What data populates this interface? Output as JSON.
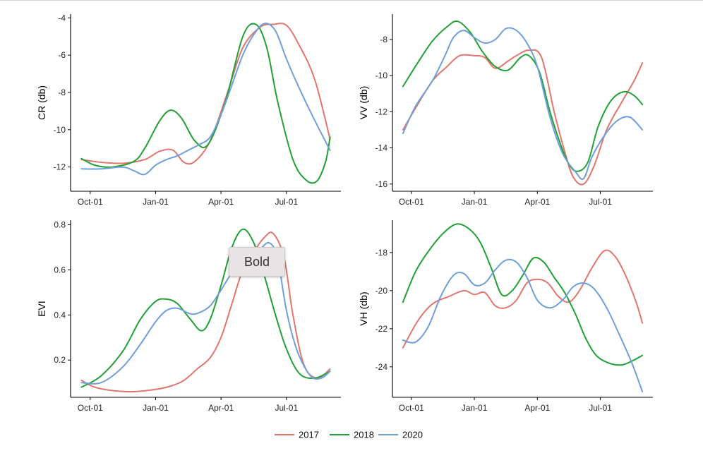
{
  "tooltip": {
    "text": "Bold"
  },
  "colors": {
    "2017": "#e0766d",
    "2018": "#21a035",
    "2020": "#6f9fdb"
  },
  "legend": [
    {
      "label": "2017",
      "color": "#e0766d"
    },
    {
      "label": "2018",
      "color": "#21a035"
    },
    {
      "label": "2020",
      "color": "#6f9fdb"
    }
  ],
  "chart_data": [
    {
      "type": "line",
      "ylabel": "CR (db)",
      "xticks": [
        1,
        4,
        7,
        10
      ],
      "xtick_labels": [
        "Oct-01",
        "Jan-01",
        "Apr-01",
        "Jul-01"
      ],
      "xlim": [
        0.1,
        12.5
      ],
      "ylim": [
        -13.3,
        -3.8
      ],
      "yticks": [
        -4,
        -6,
        -8,
        -10,
        -12
      ],
      "ytick_labels": [
        "-4",
        "-6",
        "-8",
        "-10",
        "-12"
      ],
      "grid": false,
      "series": [
        {
          "name": "2017",
          "x": [
            0.6,
            1.5,
            2.5,
            3.5,
            4.2,
            4.8,
            5.3,
            5.8,
            6.5,
            7.3,
            8.0,
            8.8,
            9.4,
            10.0,
            10.6,
            11.3,
            12.0
          ],
          "y": [
            -11.6,
            -11.75,
            -11.8,
            -11.6,
            -11.15,
            -11.1,
            -11.75,
            -11.7,
            -10.6,
            -8.0,
            -5.6,
            -4.5,
            -4.35,
            -4.4,
            -5.5,
            -7.3,
            -10.5
          ]
        },
        {
          "name": "2018",
          "x": [
            0.6,
            1.2,
            2.0,
            3.0,
            3.5,
            4.2,
            4.7,
            5.2,
            5.8,
            6.4,
            7.2,
            8.0,
            8.6,
            9.1,
            9.6,
            10.3,
            10.9,
            11.4,
            11.8,
            12.0
          ],
          "y": [
            -11.55,
            -11.9,
            -12.0,
            -11.7,
            -11.0,
            -9.5,
            -8.95,
            -9.4,
            -10.6,
            -10.8,
            -8.5,
            -5.0,
            -4.35,
            -5.6,
            -8.5,
            -11.6,
            -12.7,
            -12.75,
            -11.7,
            -10.4
          ]
        },
        {
          "name": "2020",
          "x": [
            0.6,
            1.5,
            2.5,
            3.0,
            3.5,
            4.0,
            4.5,
            5.0,
            5.5,
            6.0,
            6.5,
            7.0,
            7.5,
            8.0,
            8.5,
            9.0,
            9.5,
            10.0,
            10.6,
            11.3,
            12.0
          ],
          "y": [
            -12.1,
            -12.1,
            -12.0,
            -12.2,
            -12.4,
            -11.9,
            -11.6,
            -11.4,
            -11.1,
            -10.8,
            -10.4,
            -9.2,
            -7.6,
            -6.0,
            -4.9,
            -4.3,
            -4.7,
            -6.2,
            -7.8,
            -9.5,
            -11.1
          ]
        }
      ]
    },
    {
      "type": "line",
      "ylabel": "VV (db)",
      "xticks": [
        1,
        4,
        7,
        10
      ],
      "xtick_labels": [
        "Oct-01",
        "Jan-01",
        "Apr-01",
        "Jul-01"
      ],
      "xlim": [
        0.1,
        12.5
      ],
      "ylim": [
        -16.4,
        -6.6
      ],
      "yticks": [
        -8,
        -10,
        -12,
        -14,
        -16
      ],
      "ytick_labels": [
        "-8",
        "-10",
        "-12",
        "-14",
        "-16"
      ],
      "grid": false,
      "series": [
        {
          "name": "2017",
          "x": [
            0.6,
            1.2,
            2.0,
            2.7,
            3.3,
            4.0,
            4.5,
            5.0,
            5.6,
            6.0,
            6.6,
            7.2,
            7.8,
            8.3,
            8.7,
            9.2,
            9.7,
            10.3,
            11.0,
            11.6,
            12.0
          ],
          "y": [
            -13.0,
            -11.8,
            -10.3,
            -9.5,
            -8.9,
            -8.9,
            -9.0,
            -9.6,
            -9.2,
            -8.9,
            -8.6,
            -9.0,
            -12.0,
            -14.2,
            -15.6,
            -16.0,
            -15.0,
            -13.0,
            -11.5,
            -10.3,
            -9.3
          ]
        },
        {
          "name": "2018",
          "x": [
            0.6,
            1.3,
            2.0,
            2.7,
            3.2,
            3.8,
            4.4,
            5.0,
            5.6,
            6.2,
            6.6,
            7.1,
            7.6,
            8.1,
            8.5,
            8.9,
            9.4,
            9.9,
            10.5,
            11.1,
            11.6,
            12.0
          ],
          "y": [
            -10.6,
            -9.3,
            -8.1,
            -7.3,
            -7.0,
            -7.6,
            -8.7,
            -9.5,
            -9.7,
            -9.0,
            -8.9,
            -9.8,
            -12.0,
            -13.8,
            -14.9,
            -15.3,
            -14.8,
            -12.8,
            -11.4,
            -10.9,
            -11.1,
            -11.6
          ]
        },
        {
          "name": "2020",
          "x": [
            0.6,
            1.2,
            2.0,
            2.6,
            3.0,
            3.5,
            4.0,
            4.5,
            5.0,
            5.5,
            6.0,
            6.5,
            7.0,
            7.6,
            8.2,
            8.8,
            9.2,
            9.6,
            10.2,
            10.8,
            11.4,
            12.0
          ],
          "y": [
            -13.2,
            -11.7,
            -10.3,
            -8.9,
            -7.9,
            -7.5,
            -7.9,
            -8.2,
            -8.0,
            -7.4,
            -7.5,
            -8.2,
            -9.5,
            -12.3,
            -14.3,
            -15.3,
            -15.7,
            -14.5,
            -13.3,
            -12.5,
            -12.3,
            -13.0
          ]
        }
      ]
    },
    {
      "type": "line",
      "ylabel": "EVI",
      "xticks": [
        1,
        4,
        7,
        10
      ],
      "xtick_labels": [
        "Oct-01",
        "Jan-01",
        "Apr-01",
        "Jul-01"
      ],
      "xlim": [
        0.1,
        12.5
      ],
      "ylim": [
        0.035,
        0.82
      ],
      "yticks": [
        0.8,
        0.6,
        0.4,
        0.2
      ],
      "ytick_labels": [
        "0.8",
        "0.6",
        "0.4",
        "0.2"
      ],
      "grid": false,
      "series": [
        {
          "name": "2017",
          "x": [
            0.6,
            1.2,
            2.0,
            3.0,
            4.0,
            4.7,
            5.3,
            5.9,
            6.5,
            7.0,
            7.5,
            8.0,
            8.5,
            9.0,
            9.4,
            9.9,
            10.3,
            10.8,
            11.4,
            12.0
          ],
          "y": [
            0.11,
            0.08,
            0.065,
            0.06,
            0.07,
            0.085,
            0.11,
            0.16,
            0.21,
            0.3,
            0.45,
            0.6,
            0.68,
            0.745,
            0.76,
            0.65,
            0.4,
            0.18,
            0.12,
            0.16
          ]
        },
        {
          "name": "2018",
          "x": [
            0.6,
            1.5,
            2.5,
            3.3,
            4.0,
            4.5,
            5.0,
            5.6,
            6.1,
            6.5,
            7.0,
            7.5,
            8.0,
            8.5,
            9.0,
            9.5,
            10.0,
            10.6,
            11.3,
            12.0
          ],
          "y": [
            0.08,
            0.13,
            0.24,
            0.38,
            0.46,
            0.47,
            0.45,
            0.38,
            0.33,
            0.38,
            0.53,
            0.7,
            0.78,
            0.72,
            0.57,
            0.4,
            0.25,
            0.14,
            0.12,
            0.15
          ]
        },
        {
          "name": "2020",
          "x": [
            0.6,
            1.5,
            2.5,
            3.3,
            4.0,
            4.5,
            5.0,
            5.6,
            6.0,
            6.5,
            7.0,
            7.6,
            8.2,
            8.7,
            9.2,
            9.6,
            10.0,
            10.5,
            11.1,
            11.6,
            12.0
          ],
          "y": [
            0.1,
            0.1,
            0.17,
            0.27,
            0.37,
            0.42,
            0.43,
            0.405,
            0.41,
            0.44,
            0.51,
            0.6,
            0.64,
            0.68,
            0.72,
            0.65,
            0.42,
            0.24,
            0.13,
            0.12,
            0.15
          ]
        }
      ]
    },
    {
      "type": "line",
      "ylabel": "VH (db)",
      "xticks": [
        1,
        4,
        7,
        10
      ],
      "xtick_labels": [
        "Oct-01",
        "Jan-01",
        "Apr-01",
        "Jul-01"
      ],
      "xlim": [
        0.1,
        12.5
      ],
      "ylim": [
        -25.6,
        -16.3
      ],
      "yticks": [
        -18,
        -20,
        -22,
        -24
      ],
      "ytick_labels": [
        "-18",
        "-20",
        "-22",
        "-24"
      ],
      "grid": false,
      "series": [
        {
          "name": "2017",
          "x": [
            0.6,
            1.3,
            2.0,
            2.8,
            3.5,
            4.0,
            4.5,
            5.0,
            5.5,
            6.0,
            6.5,
            7.0,
            7.5,
            8.0,
            8.5,
            9.0,
            9.6,
            10.2,
            10.7,
            11.2,
            11.7,
            12.0
          ],
          "y": [
            -23.0,
            -21.6,
            -20.7,
            -20.3,
            -20.0,
            -20.2,
            -20.1,
            -20.8,
            -20.9,
            -20.5,
            -19.6,
            -19.4,
            -19.6,
            -20.3,
            -20.6,
            -20.0,
            -18.8,
            -17.9,
            -18.2,
            -19.2,
            -20.6,
            -21.7
          ]
        },
        {
          "name": "2018",
          "x": [
            0.6,
            1.2,
            1.9,
            2.6,
            3.2,
            3.8,
            4.3,
            4.8,
            5.3,
            5.8,
            6.3,
            6.8,
            7.3,
            7.8,
            8.3,
            8.8,
            9.3,
            9.8,
            10.4,
            11.0,
            11.5,
            12.0
          ],
          "y": [
            -20.6,
            -19.0,
            -17.8,
            -16.9,
            -16.5,
            -16.8,
            -17.5,
            -18.8,
            -20.2,
            -20.0,
            -19.2,
            -18.3,
            -18.5,
            -19.3,
            -20.1,
            -21.2,
            -22.5,
            -23.4,
            -23.8,
            -23.9,
            -23.7,
            -23.4
          ]
        },
        {
          "name": "2020",
          "x": [
            0.6,
            1.2,
            1.8,
            2.4,
            3.0,
            3.5,
            4.0,
            4.5,
            5.0,
            5.5,
            6.0,
            6.5,
            7.0,
            7.6,
            8.2,
            8.7,
            9.2,
            9.7,
            10.3,
            10.9,
            11.5,
            12.0
          ],
          "y": [
            -22.6,
            -22.7,
            -21.9,
            -20.3,
            -19.2,
            -19.1,
            -19.7,
            -19.6,
            -18.9,
            -18.4,
            -18.5,
            -19.3,
            -20.5,
            -20.9,
            -20.5,
            -19.8,
            -19.6,
            -19.9,
            -20.9,
            -22.3,
            -23.8,
            -25.3
          ]
        }
      ]
    }
  ]
}
